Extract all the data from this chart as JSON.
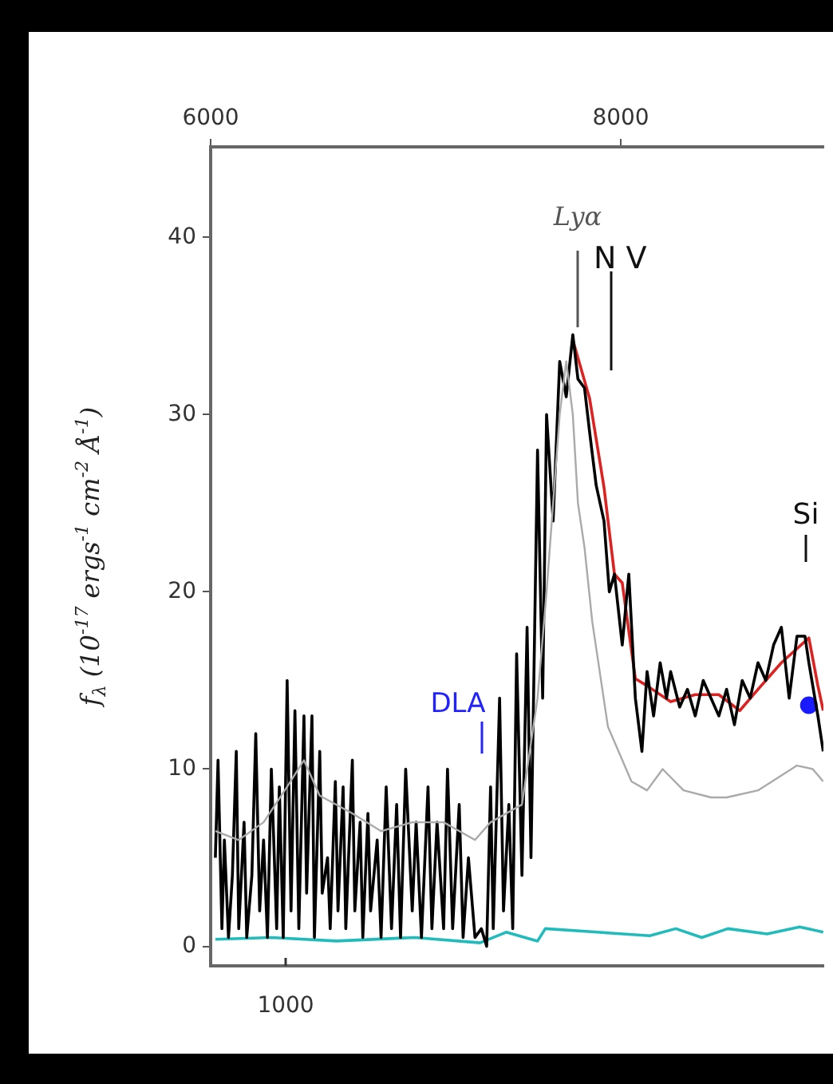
{
  "chart_data": {
    "type": "line",
    "ylabel": "f$_{λ}$ (10$^{-17}$ ergs$^{-1}$ cm$^{-2}$ Å$^{-1}$)",
    "xlim": [
      6000,
      8988
    ],
    "xticks": [
      6000,
      8000
    ],
    "ylim": [
      -1.1,
      45.1
    ],
    "yticks": [
      0,
      10,
      20,
      30,
      40
    ],
    "grid": false,
    "legend": false,
    "line_style": "solid",
    "annotations": [
      "Lyα",
      "N V",
      "Si",
      "DLA",
      "1000"
    ],
    "series": [
      {
        "color": "#aaaaaa",
        "x": [
          6023,
          6137,
          6258,
          6373,
          6455,
          6532,
          6691,
          6831,
          6983,
          7136,
          7289,
          7365,
          7518,
          7594,
          7638,
          7702,
          7734,
          7766,
          7791,
          7823,
          7861,
          7937,
          8052,
          8128,
          8204,
          8306,
          8440,
          8516,
          8669,
          8859,
          8936,
          8987
        ],
        "values": [
          6.5,
          6,
          7,
          9,
          10.5,
          8.5,
          7.5,
          6.5,
          7,
          7,
          6,
          7,
          8,
          14,
          20,
          30,
          33,
          30,
          25,
          22.5,
          18.3,
          12.4,
          9.3,
          8.8,
          10,
          8.8,
          8.4,
          8.4,
          8.8,
          10.2,
          10,
          9.3
        ]
      },
      {
        "color": "#000000",
        "x": [
          6023,
          6036,
          6055,
          6067,
          6087,
          6106,
          6125,
          6137,
          6163,
          6176,
          6201,
          6220,
          6239,
          6258,
          6277,
          6296,
          6322,
          6335,
          6354,
          6373,
          6392,
          6411,
          6430,
          6455,
          6468,
          6494,
          6506,
          6532,
          6544,
          6570,
          6583,
          6608,
          6621,
          6646,
          6659,
          6691,
          6703,
          6729,
          6742,
          6767,
          6780,
          6812,
          6831,
          6856,
          6882,
          6907,
          6926,
          6951,
          6983,
          7002,
          7028,
          7060,
          7079,
          7104,
          7136,
          7155,
          7180,
          7212,
          7231,
          7257,
          7289,
          7320,
          7346,
          7365,
          7378,
          7409,
          7428,
          7454,
          7473,
          7492,
          7518,
          7543,
          7562,
          7594,
          7619,
          7638,
          7670,
          7702,
          7734,
          7766,
          7791,
          7823,
          7848,
          7880,
          7918,
          7944,
          7969,
          8007,
          8039,
          8071,
          8103,
          8128,
          8160,
          8192,
          8223,
          8243,
          8287,
          8325,
          8363,
          8402,
          8440,
          8478,
          8516,
          8554,
          8592,
          8631,
          8669,
          8707,
          8745,
          8783,
          8821,
          8859,
          8898,
          8917,
          8961,
          8987
        ],
        "values": [
          5,
          10.5,
          1,
          6,
          0.5,
          4,
          11,
          1,
          7,
          0.5,
          4,
          12,
          2,
          6,
          0.5,
          10,
          1,
          9,
          0.5,
          15,
          2,
          13.3,
          1,
          13,
          3,
          13,
          0.5,
          11,
          3,
          5,
          1,
          9.3,
          2,
          9,
          1,
          10.5,
          2,
          7,
          0.5,
          7.5,
          2,
          6,
          0.5,
          9,
          1,
          8,
          0.5,
          10,
          2,
          7,
          0.5,
          9,
          1,
          7,
          1,
          10,
          1,
          8,
          0.5,
          5,
          0.5,
          1,
          0,
          9,
          1,
          14,
          2,
          8,
          1,
          16.5,
          4,
          18,
          5,
          28,
          14,
          30,
          24,
          33,
          31,
          34.5,
          32,
          31.5,
          29,
          26,
          24,
          20,
          21,
          17,
          21,
          14,
          11,
          15.5,
          13,
          16,
          14,
          15.5,
          13.5,
          14.5,
          13,
          15,
          14,
          13,
          14.5,
          12.5,
          15,
          14,
          16,
          15,
          17,
          18,
          14,
          17.5,
          17.5,
          16,
          13,
          11
        ]
      },
      {
        "color": "#dd2222",
        "x": [
          7766,
          7848,
          7918,
          7969,
          8007,
          8071,
          8128,
          8243,
          8363,
          8478,
          8580,
          8669,
          8783,
          8917,
          8961,
          8987
        ],
        "values": [
          34.2,
          30.9,
          25.9,
          21,
          20.5,
          15.1,
          14.7,
          13.8,
          14.2,
          14.2,
          13.3,
          14.5,
          16,
          17.4,
          14.7,
          13.3
        ]
      },
      {
        "color": "#22bbbb",
        "x": [
          6023,
          6296,
          6614,
          6996,
          7314,
          7441,
          7594,
          7632,
          7886,
          8141,
          8268,
          8395,
          8522,
          8713,
          8872,
          8987
        ],
        "values": [
          0.4,
          0.5,
          0.3,
          0.5,
          0.2,
          0.8,
          0.3,
          1,
          0.8,
          0.6,
          1,
          0.5,
          1,
          0.7,
          1.1,
          0.8
        ]
      },
      {
        "type": "scatter",
        "color": "#1a1aff",
        "x": [
          8917
        ],
        "values": [
          13.6
        ]
      }
    ]
  }
}
